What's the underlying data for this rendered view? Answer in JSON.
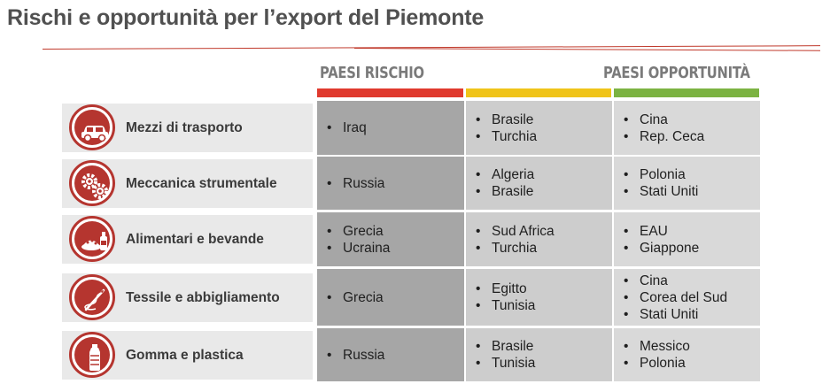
{
  "title": "Rischi e opportunità per l’export del Piemonte",
  "headers": {
    "risk": "PAESI RISCHIO",
    "opportunity": "PAESI OPPORTUNITÀ"
  },
  "colors": {
    "risk": "#e03a2e",
    "middle": "#f0c419",
    "opportunity": "#7cb342",
    "accent": "#b5352f"
  },
  "rows": [
    {
      "sector": "Mezzi di trasporto",
      "icon": "car-icon",
      "risk": [
        "Iraq"
      ],
      "middle": [
        "Brasile",
        "Turchia"
      ],
      "opportunity": [
        "Cina",
        "Rep. Ceca"
      ]
    },
    {
      "sector": "Meccanica strumentale",
      "icon": "gears-icon",
      "risk": [
        "Russia"
      ],
      "middle": [
        "Algeria",
        "Brasile"
      ],
      "opportunity": [
        "Polonia",
        "Stati Uniti"
      ]
    },
    {
      "sector": "Alimentari e bevande",
      "icon": "food-bottle-icon",
      "risk": [
        "Grecia",
        "Ucraina"
      ],
      "middle": [
        "Sud Africa",
        "Turchia"
      ],
      "opportunity": [
        "EAU",
        "Giappone"
      ]
    },
    {
      "sector": "Tessile e abbigliamento",
      "icon": "needle-thread-icon",
      "risk": [
        "Grecia"
      ],
      "middle": [
        "Egitto",
        "Tunisia"
      ],
      "opportunity": [
        "Cina",
        "Corea del Sud",
        "Stati Uniti"
      ]
    },
    {
      "sector": "Gomma e plastica",
      "icon": "plastic-bottle-icon",
      "risk": [
        "Russia"
      ],
      "middle": [
        "Brasile",
        "Tunisia"
      ],
      "opportunity": [
        "Messico",
        "Polonia"
      ]
    }
  ]
}
